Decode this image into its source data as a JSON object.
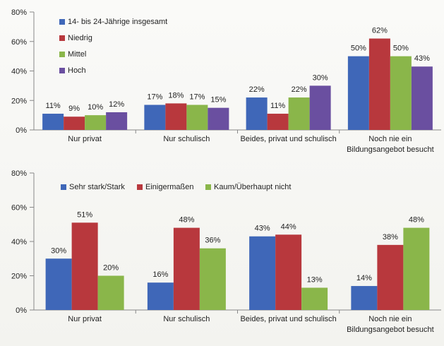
{
  "colors": {
    "blue": "#3f67b8",
    "red": "#b8383d",
    "green": "#8ab64a",
    "purple": "#6a4fa0"
  },
  "chart_data": [
    {
      "type": "bar",
      "title": "",
      "xlabel": "",
      "ylabel": "",
      "ylim": [
        0,
        80
      ],
      "yticks": [
        "0%",
        "20%",
        "40%",
        "60%",
        "80%"
      ],
      "legend_position": "top-left",
      "categories": [
        [
          "Nur privat"
        ],
        [
          "Nur schulisch"
        ],
        [
          "Beides, privat und schulisch"
        ],
        [
          "Noch nie ein",
          "Bildungsangebot besucht"
        ]
      ],
      "series": [
        {
          "name": "14- bis 24-Jährige insgesamt",
          "color": "blue",
          "values": [
            11,
            17,
            22,
            50
          ],
          "labels": [
            "11%",
            "17%",
            "22%",
            "50%"
          ]
        },
        {
          "name": "Niedrig",
          "color": "red",
          "values": [
            9,
            18,
            11,
            62
          ],
          "labels": [
            "9%",
            "18%",
            "11%",
            "62%"
          ]
        },
        {
          "name": "Mittel",
          "color": "green",
          "values": [
            10,
            17,
            22,
            50
          ],
          "labels": [
            "10%",
            "17%",
            "22%",
            "50%"
          ]
        },
        {
          "name": "Hoch",
          "color": "purple",
          "values": [
            12,
            15,
            30,
            43
          ],
          "labels": [
            "12%",
            "15%",
            "30%",
            "43%"
          ]
        }
      ]
    },
    {
      "type": "bar",
      "title": "",
      "xlabel": "",
      "ylabel": "",
      "ylim": [
        0,
        80
      ],
      "yticks": [
        "0%",
        "20%",
        "40%",
        "60%",
        "80%"
      ],
      "legend_position": "top",
      "categories": [
        [
          "Nur privat"
        ],
        [
          "Nur schulisch"
        ],
        [
          "Beides, privat und schulisch"
        ],
        [
          "Noch nie ein",
          "Bildungsangebot besucht"
        ]
      ],
      "series": [
        {
          "name": "Sehr stark/Stark",
          "color": "blue",
          "values": [
            30,
            16,
            43,
            14
          ],
          "labels": [
            "30%",
            "16%",
            "43%",
            "14%"
          ]
        },
        {
          "name": "Einigermaßen",
          "color": "red",
          "values": [
            51,
            48,
            44,
            38
          ],
          "labels": [
            "51%",
            "48%",
            "44%",
            "38%"
          ]
        },
        {
          "name": "Kaum/Überhaupt nicht",
          "color": "green",
          "values": [
            20,
            36,
            13,
            48
          ],
          "labels": [
            "20%",
            "36%",
            "13%",
            "48%"
          ]
        }
      ]
    }
  ]
}
